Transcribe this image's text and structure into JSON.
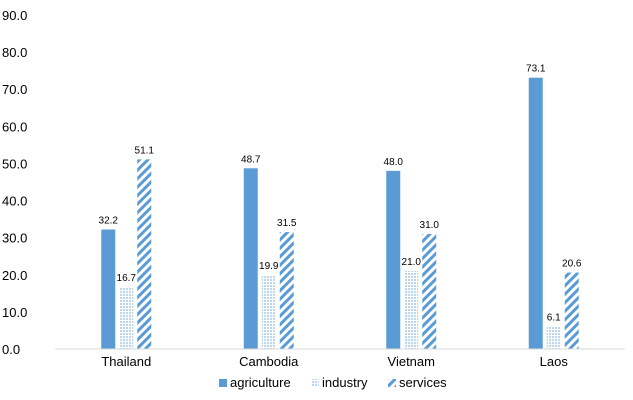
{
  "chart_data": {
    "type": "bar",
    "categories": [
      "Thailand",
      "Cambodia",
      "Vietnam",
      "Laos"
    ],
    "series": [
      {
        "name": "agriculture",
        "values": [
          32.2,
          48.7,
          48.0,
          73.1
        ],
        "style": "solid",
        "color": "#5b9bd5"
      },
      {
        "name": "industry",
        "values": [
          16.7,
          19.9,
          21.0,
          6.1
        ],
        "style": "dotted",
        "color": "#bdd7ee"
      },
      {
        "name": "services",
        "values": [
          51.1,
          31.5,
          31.0,
          20.6
        ],
        "style": "diagonal-stripes",
        "color": "#5b9bd5"
      }
    ],
    "value_labels": [
      [
        "32.2",
        "48.7",
        "48.0",
        "73.1"
      ],
      [
        "16.7",
        "19.9",
        "21.0",
        "6.1"
      ],
      [
        "51.1",
        "31.5",
        "31.0",
        "20.6"
      ]
    ],
    "y_ticks": [
      "0.0",
      "10.0",
      "20.0",
      "30.0",
      "40.0",
      "50.0",
      "60.0",
      "70.0",
      "80.0",
      "90.0"
    ],
    "ylim": [
      0,
      90
    ],
    "title": "",
    "xlabel": "",
    "ylabel": "",
    "grid": false,
    "legend_position": "bottom"
  }
}
